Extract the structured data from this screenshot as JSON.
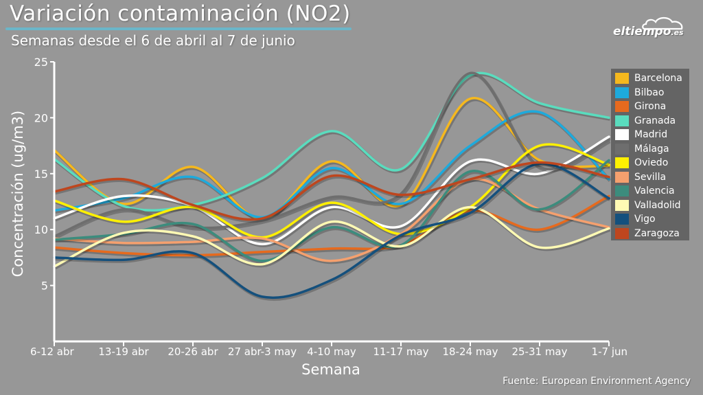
{
  "header": {
    "title": "Variación contaminación (NO2)",
    "subtitle": "Semanas desde el 6 de abril al 7 de junio",
    "logo_text": "eltiempo",
    "logo_suffix": ".es"
  },
  "footer": {
    "source": "Fuente: European Environment Agency"
  },
  "colors": {
    "background": "#979797",
    "legend_bg": "#646464",
    "title_underline": "#6bb6c9"
  },
  "chart_data": {
    "type": "line",
    "xlabel": "Semana",
    "ylabel": "Concentración (ug/m3)",
    "ylim": [
      0,
      25
    ],
    "yticks": [
      5,
      10,
      15,
      20,
      25
    ],
    "grid": false,
    "legend_position": "right",
    "categories": [
      "6-12 abr",
      "13-19 abr",
      "20-26 abr",
      "27 abr-3 may",
      "4-10 may",
      "11-17 may",
      "18-24 may",
      "25-31 may",
      "1-7 jun"
    ],
    "series": [
      {
        "name": "Barcelona",
        "color": "#f5b81e",
        "values": [
          17.1,
          12.3,
          15.6,
          11.0,
          16.1,
          12.2,
          21.7,
          16.2,
          15.7
        ]
      },
      {
        "name": "Bilbao",
        "color": "#1eaadc",
        "values": [
          11.7,
          12.8,
          14.7,
          11.1,
          15.5,
          12.3,
          17.5,
          20.5,
          14.5
        ]
      },
      {
        "name": "Girona",
        "color": "#e66a1e",
        "values": [
          8.4,
          7.9,
          7.7,
          8.0,
          8.3,
          8.6,
          11.7,
          10.0,
          13.0
        ]
      },
      {
        "name": "Granada",
        "color": "#5adcbe",
        "values": [
          16.3,
          12.1,
          12.2,
          14.6,
          18.8,
          15.4,
          23.8,
          21.3,
          20.0
        ]
      },
      {
        "name": "Madrid",
        "color": "#ffffff",
        "values": [
          11.0,
          13.0,
          12.1,
          8.7,
          12.0,
          10.3,
          16.1,
          15.0,
          18.3
        ]
      },
      {
        "name": "Málaga",
        "color": "#6e6e6e",
        "values": [
          9.4,
          11.8,
          10.2,
          10.8,
          12.9,
          13.2,
          24.0,
          15.6,
          18.0
        ]
      },
      {
        "name": "Oviedo",
        "color": "#fff000",
        "values": [
          12.6,
          10.7,
          12.0,
          9.3,
          12.4,
          9.6,
          12.0,
          17.5,
          15.8
        ]
      },
      {
        "name": "Sevilla",
        "color": "#f5a06e",
        "values": [
          9.2,
          8.8,
          8.9,
          9.2,
          7.2,
          9.6,
          14.5,
          11.8,
          10.2
        ]
      },
      {
        "name": "Valencia",
        "color": "#3c8c7d",
        "values": [
          9.1,
          9.6,
          10.5,
          7.2,
          10.2,
          8.6,
          15.2,
          11.8,
          16.2
        ]
      },
      {
        "name": "Valladolid",
        "color": "#fffab4",
        "values": [
          6.7,
          9.7,
          9.4,
          6.9,
          10.7,
          8.5,
          12.0,
          8.4,
          10.1
        ]
      },
      {
        "name": "Vigo",
        "color": "#14507d",
        "values": [
          7.5,
          7.3,
          7.9,
          4.0,
          5.5,
          9.5,
          11.5,
          15.9,
          12.8
        ]
      },
      {
        "name": "Zaragoza",
        "color": "#be461e",
        "values": [
          13.4,
          14.5,
          12.2,
          11.0,
          14.8,
          13.1,
          14.5,
          16.0,
          14.7
        ]
      }
    ]
  }
}
